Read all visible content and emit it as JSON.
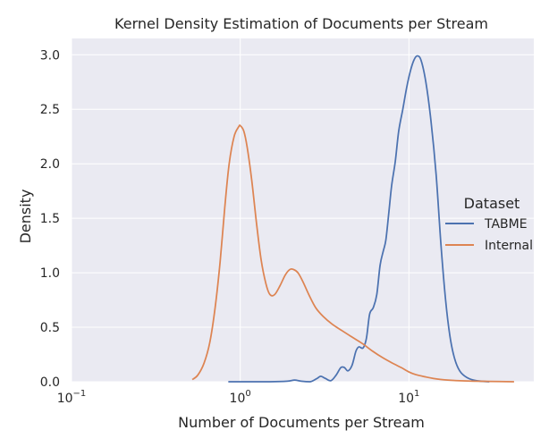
{
  "chart_data": {
    "type": "line",
    "title": "Kernel Density Estimation of Documents per Stream",
    "xlabel": "Number of Documents per Stream",
    "ylabel": "Density",
    "xscale": "log",
    "xlim": [
      0.1,
      55
    ],
    "ylim": [
      0,
      3.15
    ],
    "grid": true,
    "background": "#EAEAF2",
    "x_ticks": [
      {
        "value": 0.1,
        "base": "10",
        "exp": "−1"
      },
      {
        "value": 1,
        "base": "10",
        "exp": "0"
      },
      {
        "value": 10,
        "base": "10",
        "exp": "1"
      }
    ],
    "y_ticks": [
      {
        "value": 0.0,
        "label": "0.0"
      },
      {
        "value": 0.5,
        "label": "0.5"
      },
      {
        "value": 1.0,
        "label": "1.0"
      },
      {
        "value": 1.5,
        "label": "1.5"
      },
      {
        "value": 2.0,
        "label": "2.0"
      },
      {
        "value": 2.5,
        "label": "2.5"
      },
      {
        "value": 3.0,
        "label": "3.0"
      }
    ],
    "legend": {
      "title": "Dataset",
      "placement": "center-right"
    },
    "series": [
      {
        "name": "TABME",
        "color": "#4C72B0",
        "points": [
          [
            0.85,
            0.0
          ],
          [
            1.5,
            0.0
          ],
          [
            1.9,
            0.005
          ],
          [
            2.1,
            0.015
          ],
          [
            2.3,
            0.005
          ],
          [
            2.6,
            0.0
          ],
          [
            2.85,
            0.03
          ],
          [
            3.0,
            0.05
          ],
          [
            3.2,
            0.03
          ],
          [
            3.45,
            0.01
          ],
          [
            3.7,
            0.06
          ],
          [
            3.95,
            0.13
          ],
          [
            4.15,
            0.13
          ],
          [
            4.35,
            0.1
          ],
          [
            4.6,
            0.15
          ],
          [
            4.85,
            0.28
          ],
          [
            5.05,
            0.32
          ],
          [
            5.35,
            0.31
          ],
          [
            5.6,
            0.4
          ],
          [
            5.85,
            0.62
          ],
          [
            6.15,
            0.68
          ],
          [
            6.45,
            0.8
          ],
          [
            6.75,
            1.07
          ],
          [
            7.05,
            1.2
          ],
          [
            7.3,
            1.3
          ],
          [
            7.6,
            1.55
          ],
          [
            7.9,
            1.8
          ],
          [
            8.3,
            2.02
          ],
          [
            8.7,
            2.3
          ],
          [
            9.2,
            2.5
          ],
          [
            9.7,
            2.7
          ],
          [
            10.2,
            2.85
          ],
          [
            10.7,
            2.95
          ],
          [
            11.2,
            2.99
          ],
          [
            11.8,
            2.95
          ],
          [
            12.6,
            2.75
          ],
          [
            13.5,
            2.4
          ],
          [
            14.5,
            1.9
          ],
          [
            15.5,
            1.25
          ],
          [
            16.5,
            0.75
          ],
          [
            17.5,
            0.42
          ],
          [
            18.6,
            0.22
          ],
          [
            20.0,
            0.1
          ],
          [
            22.0,
            0.04
          ],
          [
            25.0,
            0.01
          ],
          [
            30.0,
            0.0
          ]
        ]
      },
      {
        "name": "Internal",
        "color": "#DD8452",
        "points": [
          [
            0.52,
            0.02
          ],
          [
            0.56,
            0.06
          ],
          [
            0.61,
            0.17
          ],
          [
            0.66,
            0.36
          ],
          [
            0.71,
            0.68
          ],
          [
            0.76,
            1.1
          ],
          [
            0.81,
            1.6
          ],
          [
            0.86,
            2.0
          ],
          [
            0.92,
            2.25
          ],
          [
            0.98,
            2.34
          ],
          [
            1.0,
            2.35
          ],
          [
            1.05,
            2.3
          ],
          [
            1.1,
            2.15
          ],
          [
            1.17,
            1.85
          ],
          [
            1.25,
            1.45
          ],
          [
            1.33,
            1.12
          ],
          [
            1.42,
            0.9
          ],
          [
            1.5,
            0.8
          ],
          [
            1.6,
            0.8
          ],
          [
            1.72,
            0.88
          ],
          [
            1.85,
            0.98
          ],
          [
            1.97,
            1.03
          ],
          [
            2.07,
            1.03
          ],
          [
            2.2,
            1.0
          ],
          [
            2.35,
            0.92
          ],
          [
            2.55,
            0.8
          ],
          [
            2.8,
            0.68
          ],
          [
            3.1,
            0.6
          ],
          [
            3.5,
            0.53
          ],
          [
            4.0,
            0.47
          ],
          [
            4.6,
            0.41
          ],
          [
            5.3,
            0.35
          ],
          [
            6.1,
            0.28
          ],
          [
            7.0,
            0.22
          ],
          [
            8.0,
            0.17
          ],
          [
            9.0,
            0.13
          ],
          [
            10.0,
            0.09
          ],
          [
            11.0,
            0.065
          ],
          [
            12.5,
            0.045
          ],
          [
            14.0,
            0.03
          ],
          [
            17.0,
            0.015
          ],
          [
            22.0,
            0.007
          ],
          [
            30.0,
            0.003
          ],
          [
            42.0,
            0.0
          ]
        ]
      }
    ]
  }
}
